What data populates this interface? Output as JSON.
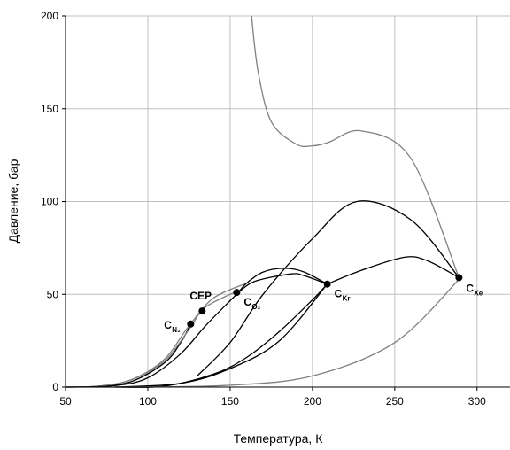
{
  "chart_data": {
    "type": "line",
    "xlabel": "Температура, К",
    "ylabel": "Давление, бар",
    "xlim": [
      50,
      320
    ],
    "ylim": [
      0,
      200
    ],
    "x_ticks": [
      "50",
      "100",
      "150",
      "200",
      "250",
      "300"
    ],
    "y_ticks": [
      "0",
      "50",
      "100",
      "150",
      "200"
    ],
    "grid": true,
    "colors": {
      "black_curve": "#000000",
      "gray_curve": "#808080",
      "grid": "#c0c0c0"
    },
    "series": [
      {
        "style": "black",
        "x": [
          50,
          70,
          90,
          110,
          120,
          126
        ],
        "y": [
          0,
          0.5,
          3,
          13,
          24,
          34
        ]
      },
      {
        "style": "gray",
        "x": [
          50,
          70,
          90,
          110,
          125,
          140,
          160
        ],
        "y": [
          0,
          0.5,
          4,
          15,
          33,
          48,
          56
        ]
      },
      {
        "style": "gray",
        "x": [
          50,
          70,
          90,
          110,
          125,
          135,
          155
        ],
        "y": [
          0,
          0.5,
          4,
          14,
          31,
          43,
          52
        ]
      },
      {
        "style": "black",
        "x": [
          50,
          80,
          100,
          120,
          135,
          155
        ],
        "y": [
          0,
          0.8,
          5,
          18,
          33,
          51
        ]
      },
      {
        "style": "black",
        "x": [
          155,
          160,
          170,
          183,
          195,
          209
        ],
        "y": [
          51,
          56,
          62,
          64,
          62,
          55.5
        ]
      },
      {
        "style": "black",
        "x": [
          155,
          165,
          187,
          195,
          209
        ],
        "y": [
          51,
          57,
          61,
          60,
          55.5
        ]
      },
      {
        "style": "black",
        "x": [
          209,
          230,
          256,
          270,
          289
        ],
        "y": [
          55.5,
          63,
          70,
          68,
          59
        ]
      },
      {
        "style": "black",
        "x": [
          80,
          110,
          140,
          160,
          180,
          200,
          209
        ],
        "y": [
          0,
          0.5,
          7,
          16,
          30,
          47,
          55.5
        ]
      },
      {
        "style": "black",
        "x": [
          130,
          150,
          170,
          200,
          227,
          260,
          289
        ],
        "y": [
          6,
          24,
          50,
          80,
          100,
          90,
          59
        ]
      },
      {
        "style": "black",
        "x": [
          80,
          120,
          150,
          180,
          209
        ],
        "y": [
          0,
          2,
          10,
          25,
          55.5
        ]
      },
      {
        "style": "gray",
        "x": [
          50,
          100,
          150,
          200,
          250,
          289
        ],
        "y": [
          0,
          0.1,
          1,
          6,
          24,
          58
        ]
      },
      {
        "style": "gray",
        "x": [
          163,
          167,
          175,
          190,
          200,
          210,
          230,
          260,
          289
        ],
        "y": [
          200,
          170,
          143,
          131,
          130,
          132,
          138,
          123,
          59
        ]
      }
    ],
    "points": [
      {
        "label": "C",
        "sub": "N₂",
        "x": 126,
        "y": 34
      },
      {
        "label": "CEP",
        "sub": "",
        "x": 133,
        "y": 41
      },
      {
        "label": "C",
        "sub": "O₂",
        "x": 154,
        "y": 51
      },
      {
        "label": "C",
        "sub": "Kr",
        "x": 209,
        "y": 55.5
      },
      {
        "label": "C",
        "sub": "Xe",
        "x": 289,
        "y": 59
      }
    ]
  }
}
